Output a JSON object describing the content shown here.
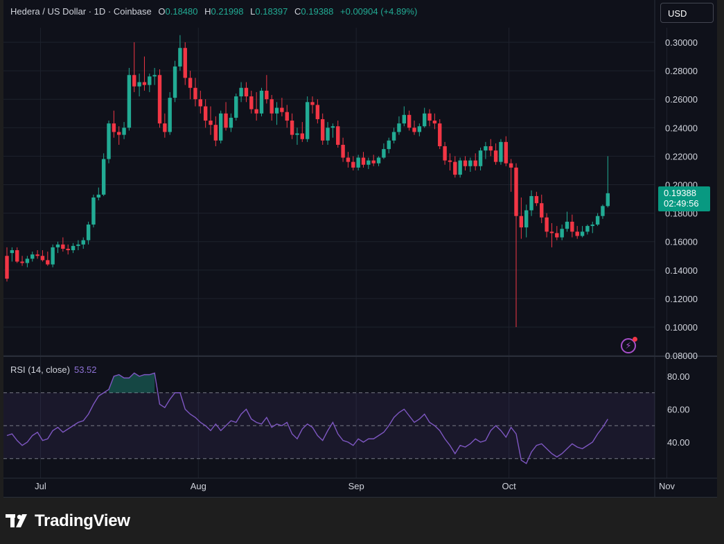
{
  "header": {
    "symbol": "Hedera / US Dollar · 1D · Coinbase",
    "open_label": "O",
    "open": "0.18480",
    "high_label": "H",
    "high": "0.21998",
    "low_label": "L",
    "low": "0.18397",
    "close_label": "C",
    "close": "0.19388",
    "change": "+0.00904 (+4.89%)"
  },
  "currency_button": "USD",
  "price_tag": {
    "price": "0.19388",
    "countdown": "02:49:56"
  },
  "rsi": {
    "label": "RSI (14, close)",
    "value": "53.52"
  },
  "brand": "TradingView",
  "colors": {
    "up": "#22ab94",
    "down": "#f23645",
    "rsi_line": "#7e57c2",
    "background": "#0f111a",
    "brand_accent": "#a64fc9"
  },
  "icons": [
    "lightning-icon",
    "tradingview-logo-icon"
  ],
  "chart_data": [
    {
      "type": "candlestick",
      "price_ticks": [
        "0.30000",
        "0.28000",
        "0.26000",
        "0.24000",
        "0.22000",
        "0.20000",
        "0.18000",
        "0.16000",
        "0.14000",
        "0.12000",
        "0.10000",
        "0.08000"
      ],
      "ylim": [
        0.079,
        0.305
      ],
      "x_labels": [
        "Jul",
        "Aug",
        "Sep",
        "Oct",
        "Nov"
      ],
      "x_label_dates": [
        "2024-07-01",
        "2024-08-01",
        "2024-09-01",
        "2024-10-01",
        "2024-11-01"
      ],
      "start_date": "2024-06-24",
      "ohlc": [
        [
          0.15,
          0.156,
          0.132,
          0.134
        ],
        [
          0.152,
          0.156,
          0.146,
          0.154
        ],
        [
          0.154,
          0.156,
          0.145,
          0.146
        ],
        [
          0.146,
          0.15,
          0.143,
          0.145
        ],
        [
          0.145,
          0.15,
          0.142,
          0.148
        ],
        [
          0.148,
          0.153,
          0.146,
          0.151
        ],
        [
          0.151,
          0.154,
          0.148,
          0.15
        ],
        [
          0.15,
          0.154,
          0.146,
          0.147
        ],
        [
          0.147,
          0.153,
          0.143,
          0.144
        ],
        [
          0.144,
          0.158,
          0.142,
          0.156
        ],
        [
          0.156,
          0.16,
          0.152,
          0.158
        ],
        [
          0.158,
          0.163,
          0.153,
          0.155
        ],
        [
          0.155,
          0.158,
          0.151,
          0.154
        ],
        [
          0.154,
          0.159,
          0.152,
          0.157
        ],
        [
          0.157,
          0.161,
          0.154,
          0.158
        ],
        [
          0.158,
          0.163,
          0.155,
          0.161
        ],
        [
          0.161,
          0.174,
          0.158,
          0.172
        ],
        [
          0.172,
          0.193,
          0.17,
          0.191
        ],
        [
          0.191,
          0.198,
          0.189,
          0.193
        ],
        [
          0.193,
          0.222,
          0.192,
          0.218
        ],
        [
          0.218,
          0.245,
          0.215,
          0.243
        ],
        [
          0.243,
          0.252,
          0.233,
          0.237
        ],
        [
          0.237,
          0.241,
          0.228,
          0.235
        ],
        [
          0.235,
          0.244,
          0.232,
          0.24
        ],
        [
          0.24,
          0.282,
          0.238,
          0.277
        ],
        [
          0.277,
          0.3,
          0.265,
          0.269
        ],
        [
          0.269,
          0.278,
          0.262,
          0.272
        ],
        [
          0.272,
          0.29,
          0.266,
          0.27
        ],
        [
          0.27,
          0.278,
          0.265,
          0.276
        ],
        [
          0.276,
          0.282,
          0.27,
          0.277
        ],
        [
          0.277,
          0.281,
          0.24,
          0.243
        ],
        [
          0.243,
          0.25,
          0.233,
          0.237
        ],
        [
          0.237,
          0.265,
          0.235,
          0.261
        ],
        [
          0.261,
          0.287,
          0.258,
          0.283
        ],
        [
          0.283,
          0.305,
          0.28,
          0.296
        ],
        [
          0.296,
          0.3,
          0.27,
          0.275
        ],
        [
          0.275,
          0.28,
          0.26,
          0.268
        ],
        [
          0.268,
          0.275,
          0.255,
          0.26
        ],
        [
          0.26,
          0.266,
          0.25,
          0.255
        ],
        [
          0.255,
          0.26,
          0.24,
          0.245
        ],
        [
          0.245,
          0.255,
          0.235,
          0.242
        ],
        [
          0.242,
          0.248,
          0.227,
          0.231
        ],
        [
          0.231,
          0.252,
          0.229,
          0.25
        ],
        [
          0.25,
          0.258,
          0.238,
          0.24
        ],
        [
          0.24,
          0.25,
          0.237,
          0.247
        ],
        [
          0.247,
          0.264,
          0.245,
          0.262
        ],
        [
          0.262,
          0.272,
          0.258,
          0.268
        ],
        [
          0.268,
          0.272,
          0.258,
          0.262
        ],
        [
          0.262,
          0.266,
          0.25,
          0.253
        ],
        [
          0.253,
          0.265,
          0.245,
          0.25
        ],
        [
          0.25,
          0.268,
          0.248,
          0.266
        ],
        [
          0.266,
          0.277,
          0.257,
          0.26
        ],
        [
          0.26,
          0.263,
          0.245,
          0.25
        ],
        [
          0.25,
          0.258,
          0.242,
          0.254
        ],
        [
          0.254,
          0.261,
          0.248,
          0.251
        ],
        [
          0.251,
          0.256,
          0.24,
          0.245
        ],
        [
          0.245,
          0.25,
          0.232,
          0.235
        ],
        [
          0.235,
          0.24,
          0.228,
          0.236
        ],
        [
          0.236,
          0.244,
          0.23,
          0.232
        ],
        [
          0.232,
          0.262,
          0.23,
          0.258
        ],
        [
          0.258,
          0.262,
          0.25,
          0.256
        ],
        [
          0.256,
          0.26,
          0.243,
          0.246
        ],
        [
          0.246,
          0.25,
          0.228,
          0.231
        ],
        [
          0.231,
          0.244,
          0.228,
          0.24
        ],
        [
          0.24,
          0.243,
          0.233,
          0.241
        ],
        [
          0.241,
          0.245,
          0.226,
          0.228
        ],
        [
          0.228,
          0.233,
          0.216,
          0.219
        ],
        [
          0.219,
          0.223,
          0.212,
          0.216
        ],
        [
          0.216,
          0.22,
          0.21,
          0.212
        ],
        [
          0.212,
          0.221,
          0.21,
          0.219
        ],
        [
          0.219,
          0.223,
          0.212,
          0.214
        ],
        [
          0.214,
          0.219,
          0.211,
          0.217
        ],
        [
          0.217,
          0.221,
          0.213,
          0.215
        ],
        [
          0.215,
          0.22,
          0.213,
          0.219
        ],
        [
          0.219,
          0.229,
          0.218,
          0.225
        ],
        [
          0.225,
          0.233,
          0.222,
          0.231
        ],
        [
          0.231,
          0.24,
          0.229,
          0.237
        ],
        [
          0.237,
          0.248,
          0.235,
          0.243
        ],
        [
          0.243,
          0.255,
          0.241,
          0.249
        ],
        [
          0.249,
          0.252,
          0.238,
          0.24
        ],
        [
          0.24,
          0.245,
          0.235,
          0.237
        ],
        [
          0.237,
          0.243,
          0.234,
          0.241
        ],
        [
          0.241,
          0.254,
          0.24,
          0.25
        ],
        [
          0.25,
          0.253,
          0.241,
          0.245
        ],
        [
          0.245,
          0.25,
          0.239,
          0.243
        ],
        [
          0.243,
          0.246,
          0.225,
          0.227
        ],
        [
          0.227,
          0.23,
          0.214,
          0.217
        ],
        [
          0.217,
          0.222,
          0.21,
          0.216
        ],
        [
          0.216,
          0.22,
          0.205,
          0.207
        ],
        [
          0.207,
          0.219,
          0.205,
          0.217
        ],
        [
          0.217,
          0.22,
          0.21,
          0.213
        ],
        [
          0.213,
          0.219,
          0.209,
          0.217
        ],
        [
          0.217,
          0.222,
          0.21,
          0.213
        ],
        [
          0.213,
          0.226,
          0.21,
          0.224
        ],
        [
          0.224,
          0.23,
          0.218,
          0.227
        ],
        [
          0.227,
          0.232,
          0.22,
          0.224
        ],
        [
          0.224,
          0.229,
          0.214,
          0.216
        ],
        [
          0.216,
          0.232,
          0.214,
          0.23
        ],
        [
          0.23,
          0.234,
          0.213,
          0.215
        ],
        [
          0.215,
          0.218,
          0.195,
          0.212
        ],
        [
          0.212,
          0.215,
          0.1,
          0.178
        ],
        [
          0.178,
          0.191,
          0.162,
          0.17
        ],
        [
          0.17,
          0.186,
          0.163,
          0.182
        ],
        [
          0.182,
          0.196,
          0.178,
          0.192
        ],
        [
          0.192,
          0.195,
          0.185,
          0.187
        ],
        [
          0.187,
          0.193,
          0.173,
          0.177
        ],
        [
          0.177,
          0.18,
          0.163,
          0.167
        ],
        [
          0.167,
          0.173,
          0.156,
          0.166
        ],
        [
          0.166,
          0.171,
          0.161,
          0.163
        ],
        [
          0.163,
          0.172,
          0.161,
          0.169
        ],
        [
          0.169,
          0.181,
          0.167,
          0.174
        ],
        [
          0.174,
          0.179,
          0.163,
          0.167
        ],
        [
          0.167,
          0.171,
          0.162,
          0.164
        ],
        [
          0.164,
          0.171,
          0.163,
          0.167
        ],
        [
          0.167,
          0.172,
          0.165,
          0.171
        ],
        [
          0.171,
          0.174,
          0.166,
          0.172
        ],
        [
          0.172,
          0.18,
          0.171,
          0.178
        ],
        [
          0.178,
          0.186,
          0.176,
          0.185
        ],
        [
          0.185,
          0.22,
          0.184,
          0.194
        ]
      ]
    },
    {
      "type": "line",
      "title": "RSI (14, close)",
      "y_ticks": [
        "80.00",
        "60.00",
        "40.00"
      ],
      "ylim": [
        24,
        86
      ],
      "bands": [
        70,
        50,
        30
      ],
      "series": [
        {
          "values": [
            44,
            45,
            41,
            38,
            40,
            44,
            46,
            41,
            42,
            47,
            49,
            46,
            48,
            50,
            52,
            53,
            57,
            63,
            68,
            70,
            72,
            80,
            81,
            79,
            79,
            82,
            80,
            81,
            81,
            82,
            63,
            61,
            66,
            70,
            70,
            60,
            57,
            55,
            52,
            50,
            47,
            51,
            47,
            50,
            53,
            52,
            57,
            60,
            54,
            52,
            51,
            55,
            49,
            51,
            50,
            52,
            45,
            42,
            48,
            51,
            49,
            44,
            41,
            47,
            52,
            45,
            41,
            40,
            38,
            42,
            40,
            42,
            42,
            44,
            46,
            50,
            55,
            58,
            60,
            56,
            52,
            54,
            57,
            52,
            50,
            47,
            42,
            38,
            33,
            38,
            37,
            39,
            42,
            40,
            41,
            47,
            50,
            47,
            43,
            49,
            45,
            29,
            27,
            34,
            38,
            39,
            36,
            33,
            31,
            33,
            36,
            39,
            37,
            36,
            38,
            40,
            45,
            49,
            54
          ]
        }
      ]
    }
  ]
}
